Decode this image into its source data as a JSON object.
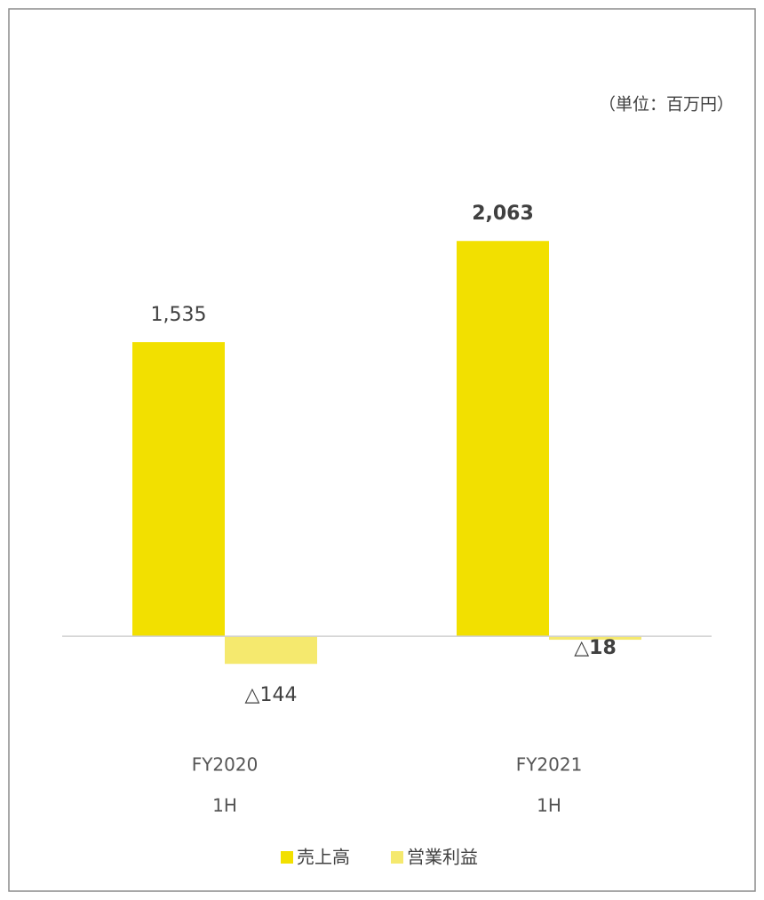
{
  "chart_data": {
    "type": "bar",
    "subtitle": "（単位：百万円）",
    "categories": [
      [
        "FY2020",
        "1H"
      ],
      [
        "FY2021",
        "1H"
      ]
    ],
    "series": [
      {
        "name": "売上高",
        "color": "#f2e000",
        "values": [
          1535,
          2063
        ],
        "value_labels": [
          "1,535",
          "2,063"
        ]
      },
      {
        "name": "営業利益",
        "color": "#f5e96e",
        "values": [
          -144,
          -18
        ],
        "value_labels": [
          "△144",
          "△18"
        ]
      }
    ],
    "ylim": [
      -500,
      2500
    ],
    "legend": "bottom"
  }
}
